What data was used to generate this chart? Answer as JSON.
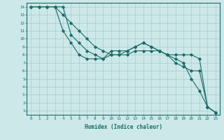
{
  "xlabel": "Humidex (Indice chaleur)",
  "xlim": [
    -0.5,
    23.5
  ],
  "ylim": [
    0.5,
    14.5
  ],
  "xticks": [
    0,
    1,
    2,
    3,
    4,
    5,
    6,
    7,
    8,
    9,
    10,
    11,
    12,
    13,
    14,
    15,
    16,
    17,
    18,
    19,
    20,
    21,
    22,
    23
  ],
  "yticks": [
    1,
    2,
    3,
    4,
    5,
    6,
    7,
    8,
    9,
    10,
    11,
    12,
    13,
    14
  ],
  "background_color": "#cce8e8",
  "grid_color": "#aacccc",
  "line_color": "#1a6b6b",
  "line1_x": [
    0,
    1,
    2,
    3,
    4,
    5,
    6,
    7,
    8,
    9,
    10,
    11,
    12,
    13,
    14,
    15,
    16,
    17,
    18,
    19,
    20,
    21,
    22,
    23
  ],
  "line1_y": [
    14,
    14,
    14,
    14,
    14,
    10.5,
    9.5,
    8.5,
    8,
    7.5,
    8,
    8,
    8.5,
    9,
    9.5,
    9,
    8.5,
    8,
    7.5,
    7,
    5,
    3.5,
    1.5,
    0.8
  ],
  "line2_x": [
    0,
    1,
    2,
    3,
    4,
    5,
    6,
    7,
    8,
    9,
    10,
    11,
    12,
    13,
    14,
    15,
    16,
    17,
    18,
    19,
    20,
    21,
    22,
    23
  ],
  "line2_y": [
    14,
    14,
    14,
    14,
    13,
    12,
    11,
    10,
    9,
    8.5,
    8,
    8,
    8,
    8.5,
    8.5,
    8.5,
    8.5,
    8,
    7,
    6.5,
    6,
    6,
    1.5,
    0.8
  ],
  "line3_x": [
    3,
    4,
    5,
    6,
    7,
    8,
    9,
    10,
    11,
    12,
    13,
    14,
    15,
    16,
    17,
    18,
    19,
    20,
    21,
    22,
    23
  ],
  "line3_y": [
    14,
    11,
    9.5,
    8,
    7.5,
    7.5,
    7.5,
    8.5,
    8.5,
    8.5,
    9,
    9.5,
    9,
    8.5,
    8,
    8,
    8,
    8,
    7.5,
    1.5,
    0.8
  ]
}
